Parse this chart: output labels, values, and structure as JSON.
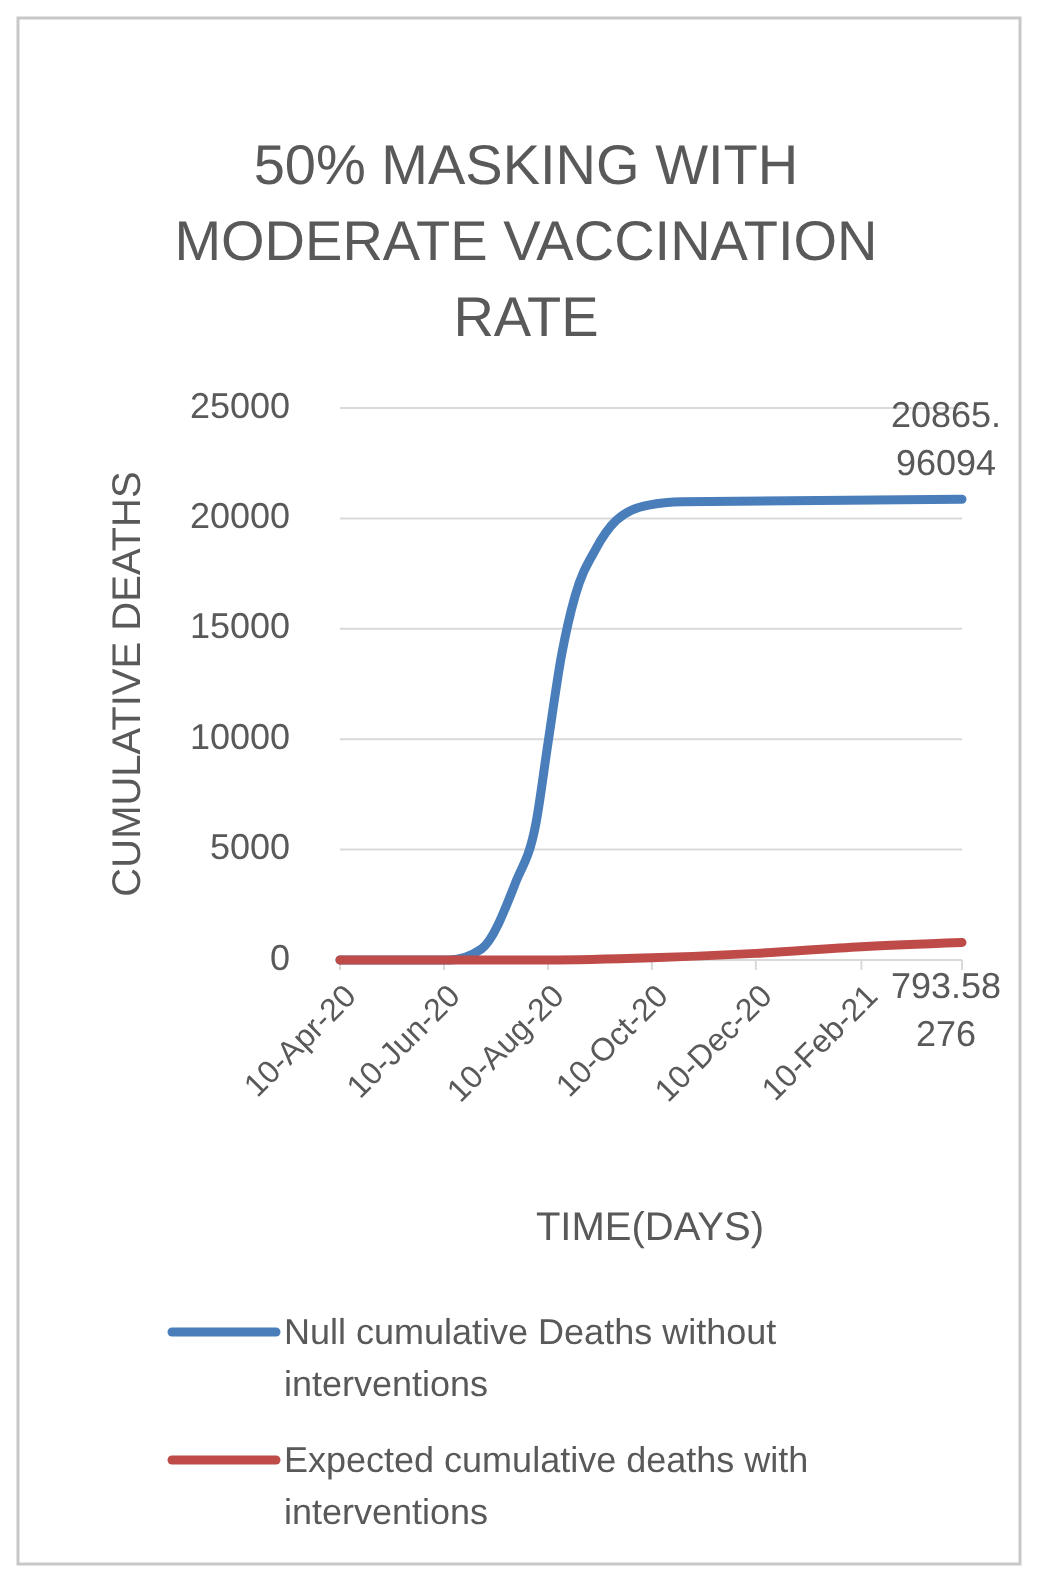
{
  "chart_data": {
    "type": "line",
    "title": "50% MASKING WITH MODERATE VACCINATION RATE",
    "xlabel": "TIME(DAYS)",
    "ylabel": "CUMULATIVE DEATHS",
    "xlim": [
      "2020-04-10",
      "2021-04-10"
    ],
    "xticks": [
      {
        "value": "2020-04-10",
        "label": "10-Apr-20"
      },
      {
        "value": "2020-06-10",
        "label": "10-Jun-20"
      },
      {
        "value": "2020-08-10",
        "label": "10-Aug-20"
      },
      {
        "value": "2020-10-10",
        "label": "10-Oct-20"
      },
      {
        "value": "2020-12-10",
        "label": "10-Dec-20"
      },
      {
        "value": "2021-02-10",
        "label": "10-Feb-21"
      }
    ],
    "ylim": [
      0,
      25000
    ],
    "yticks": [
      0,
      5000,
      10000,
      15000,
      20000,
      25000
    ],
    "grid": "y",
    "legend": "bottom",
    "line_style": "solid",
    "marker": "none",
    "series": [
      {
        "name": "Null cumulative Deaths without interventions",
        "color": "#4a7ebb",
        "x": [
          "2020-04-10",
          "2020-06-13",
          "2020-07-02",
          "2020-07-22",
          "2020-08-03",
          "2020-08-10",
          "2020-08-18",
          "2020-08-26",
          "2020-09-07",
          "2020-09-19",
          "2020-10-08",
          "2020-10-28",
          "2021-04-10"
        ],
        "values": [
          0,
          0,
          500,
          3500,
          6200,
          9800,
          13800,
          16500,
          18600,
          19900,
          20600,
          20750,
          20865.96094
        ],
        "value_labels": [
          null,
          null,
          null,
          null,
          null,
          null,
          null,
          null,
          null,
          null,
          null,
          null,
          "20865.96094"
        ]
      },
      {
        "name": "Expected cumulative deaths with interventions",
        "color": "#be4b48",
        "x": [
          "2020-04-10",
          "2020-06-10",
          "2020-08-10",
          "2020-10-10",
          "2020-12-10",
          "2021-02-10",
          "2021-04-10"
        ],
        "values": [
          0,
          0,
          0,
          100,
          300,
          600,
          793.58276
        ],
        "value_labels": [
          null,
          null,
          null,
          null,
          null,
          null,
          "793.58276"
        ]
      }
    ]
  }
}
